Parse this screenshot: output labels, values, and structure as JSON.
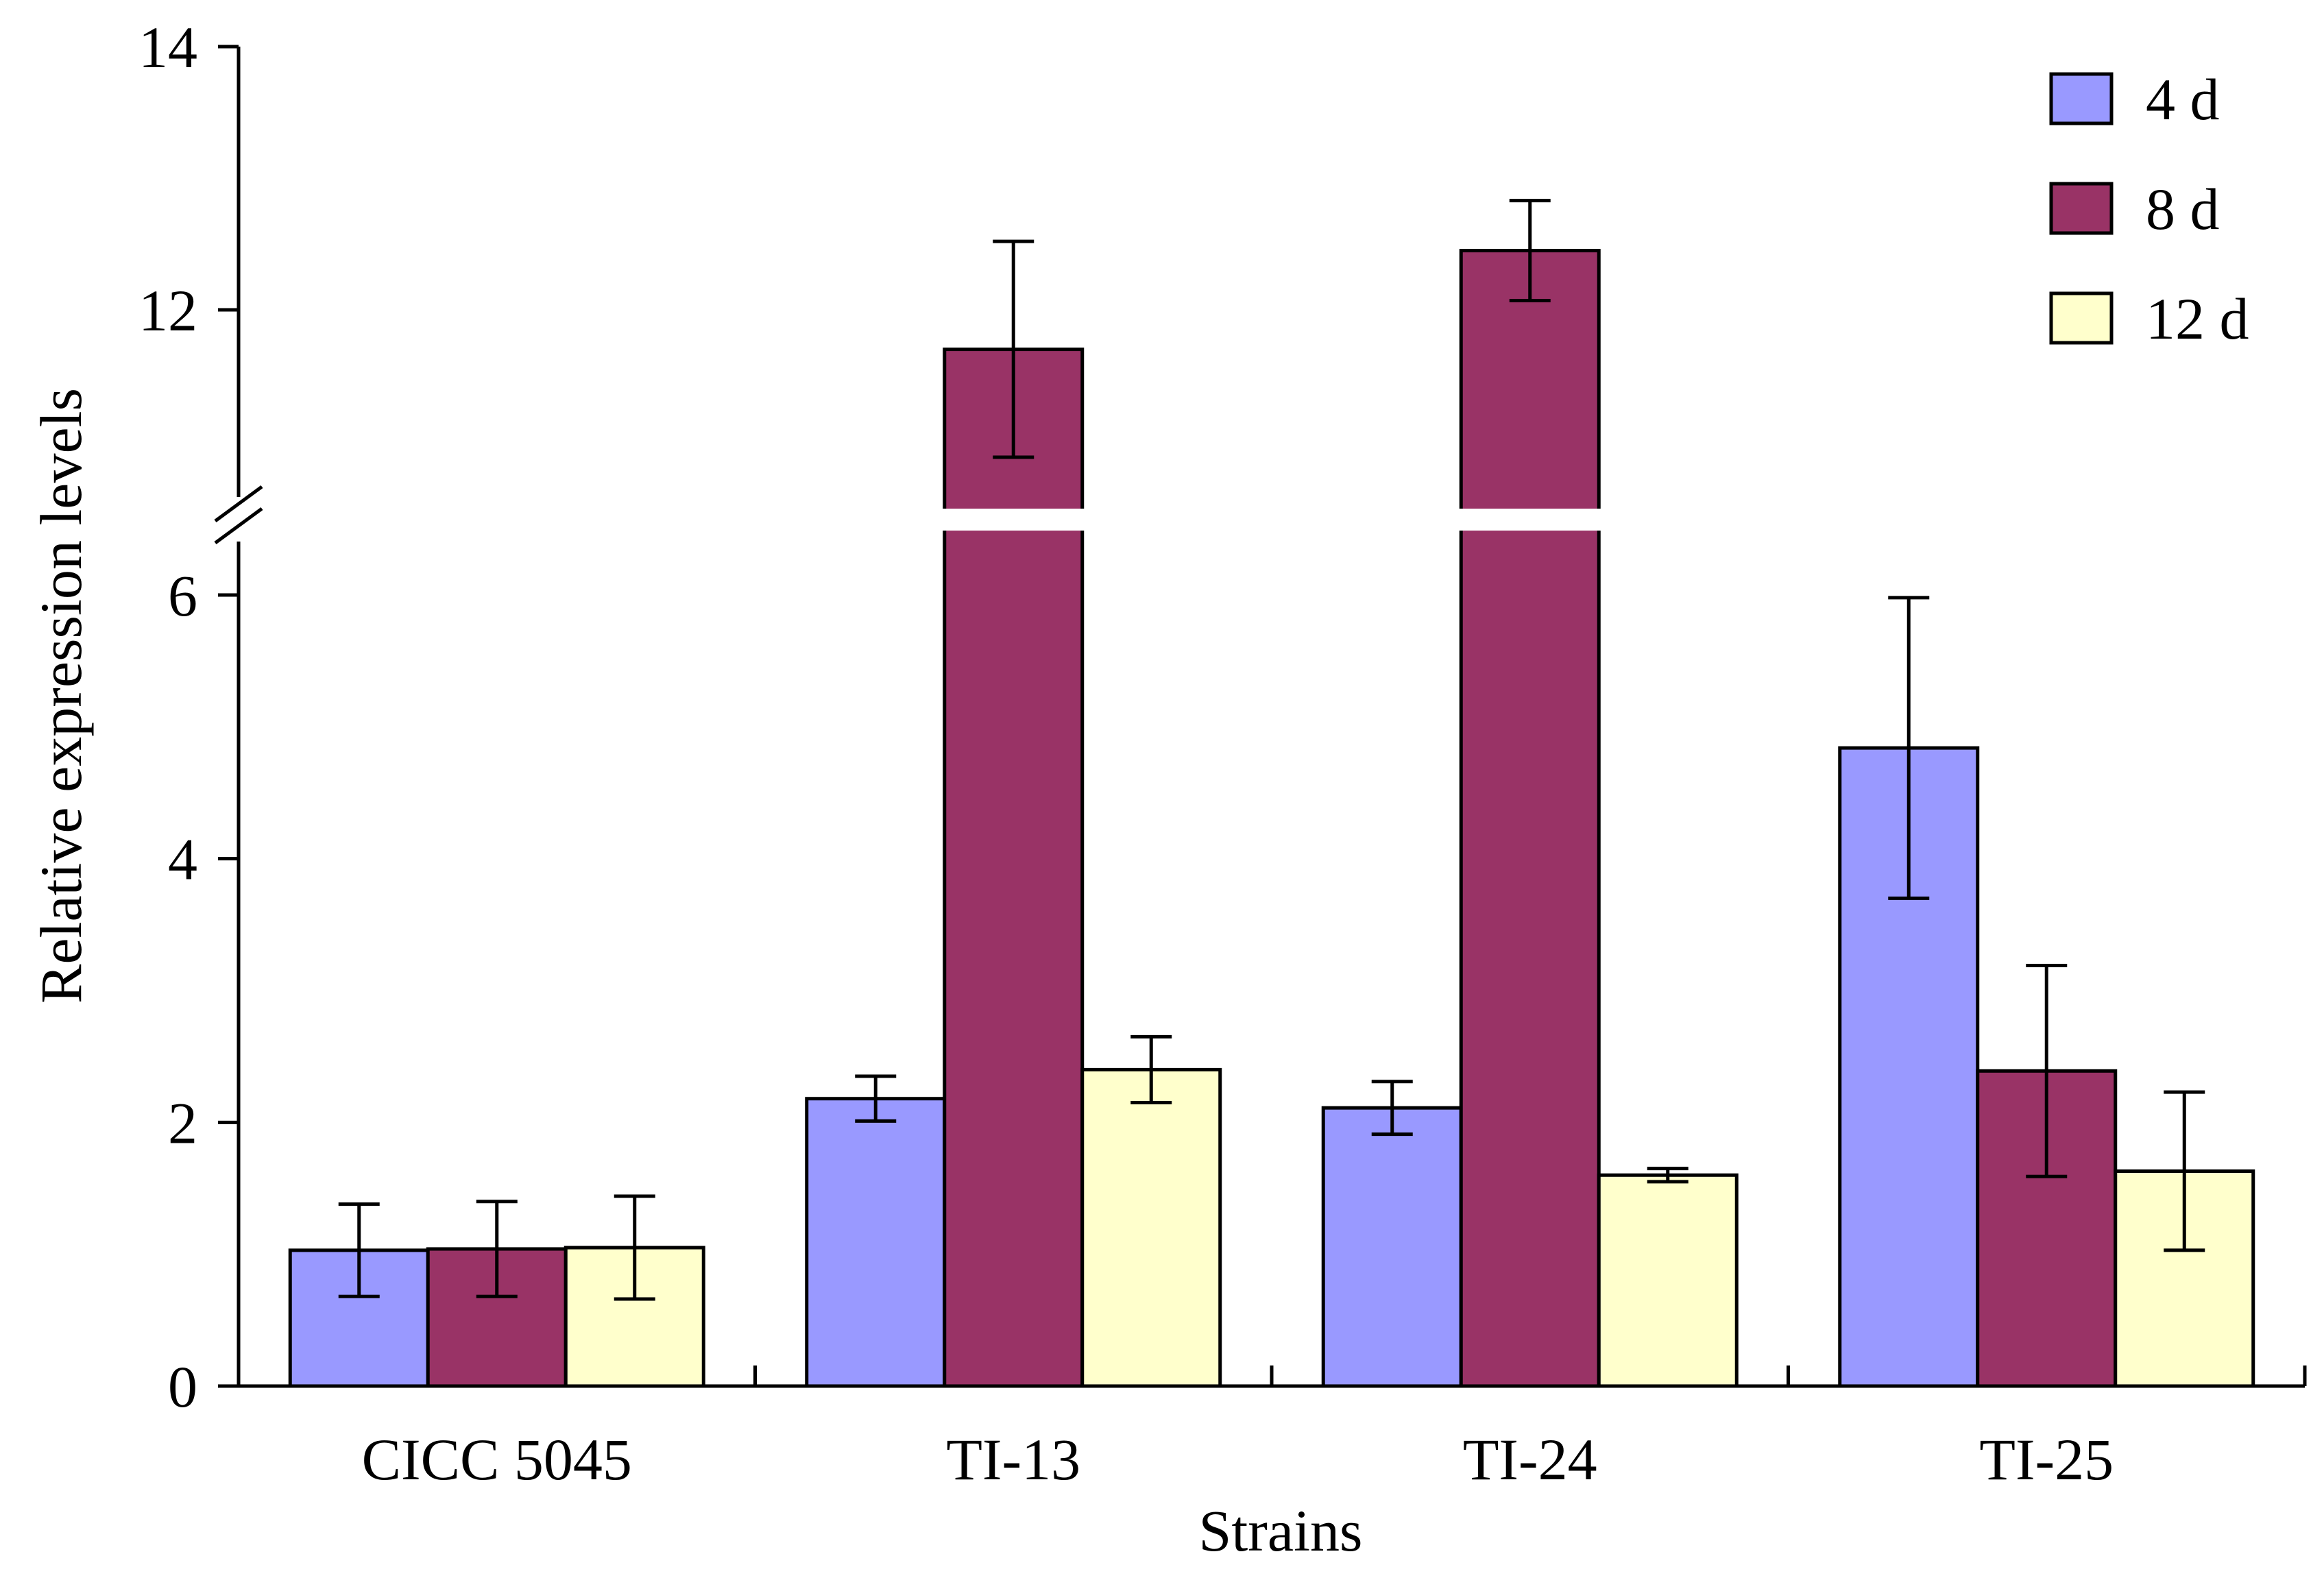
{
  "chart_data": {
    "type": "bar",
    "title": "",
    "xlabel": "Strains",
    "ylabel": "Relative expression levels",
    "categories": [
      "CICC 5045",
      "TI-13",
      "TI-24",
      "TI-25"
    ],
    "series": [
      {
        "name": "4 d",
        "color": "#9999ff",
        "values": [
          1.03,
          2.18,
          2.11,
          4.84
        ],
        "errors": [
          0.35,
          0.17,
          0.2,
          1.14
        ]
      },
      {
        "name": "8 d",
        "color": "#993366",
        "values": [
          1.04,
          11.7,
          12.45,
          2.39
        ],
        "errors": [
          0.36,
          0.82,
          0.38,
          0.8
        ]
      },
      {
        "name": "12 d",
        "color": "#ffffcc",
        "values": [
          1.05,
          2.4,
          1.6,
          1.63
        ],
        "errors": [
          0.39,
          0.25,
          0.05,
          0.6
        ]
      }
    ],
    "ylim": [
      0,
      14
    ],
    "yaxis_break": [
      6.5,
      10.8
    ],
    "yticks": [
      "0",
      "2",
      "4",
      "6",
      "12",
      "14"
    ],
    "ytick_values": [
      0,
      2,
      4,
      6,
      12,
      14
    ],
    "legend_position": "top-right",
    "grid": false
  }
}
